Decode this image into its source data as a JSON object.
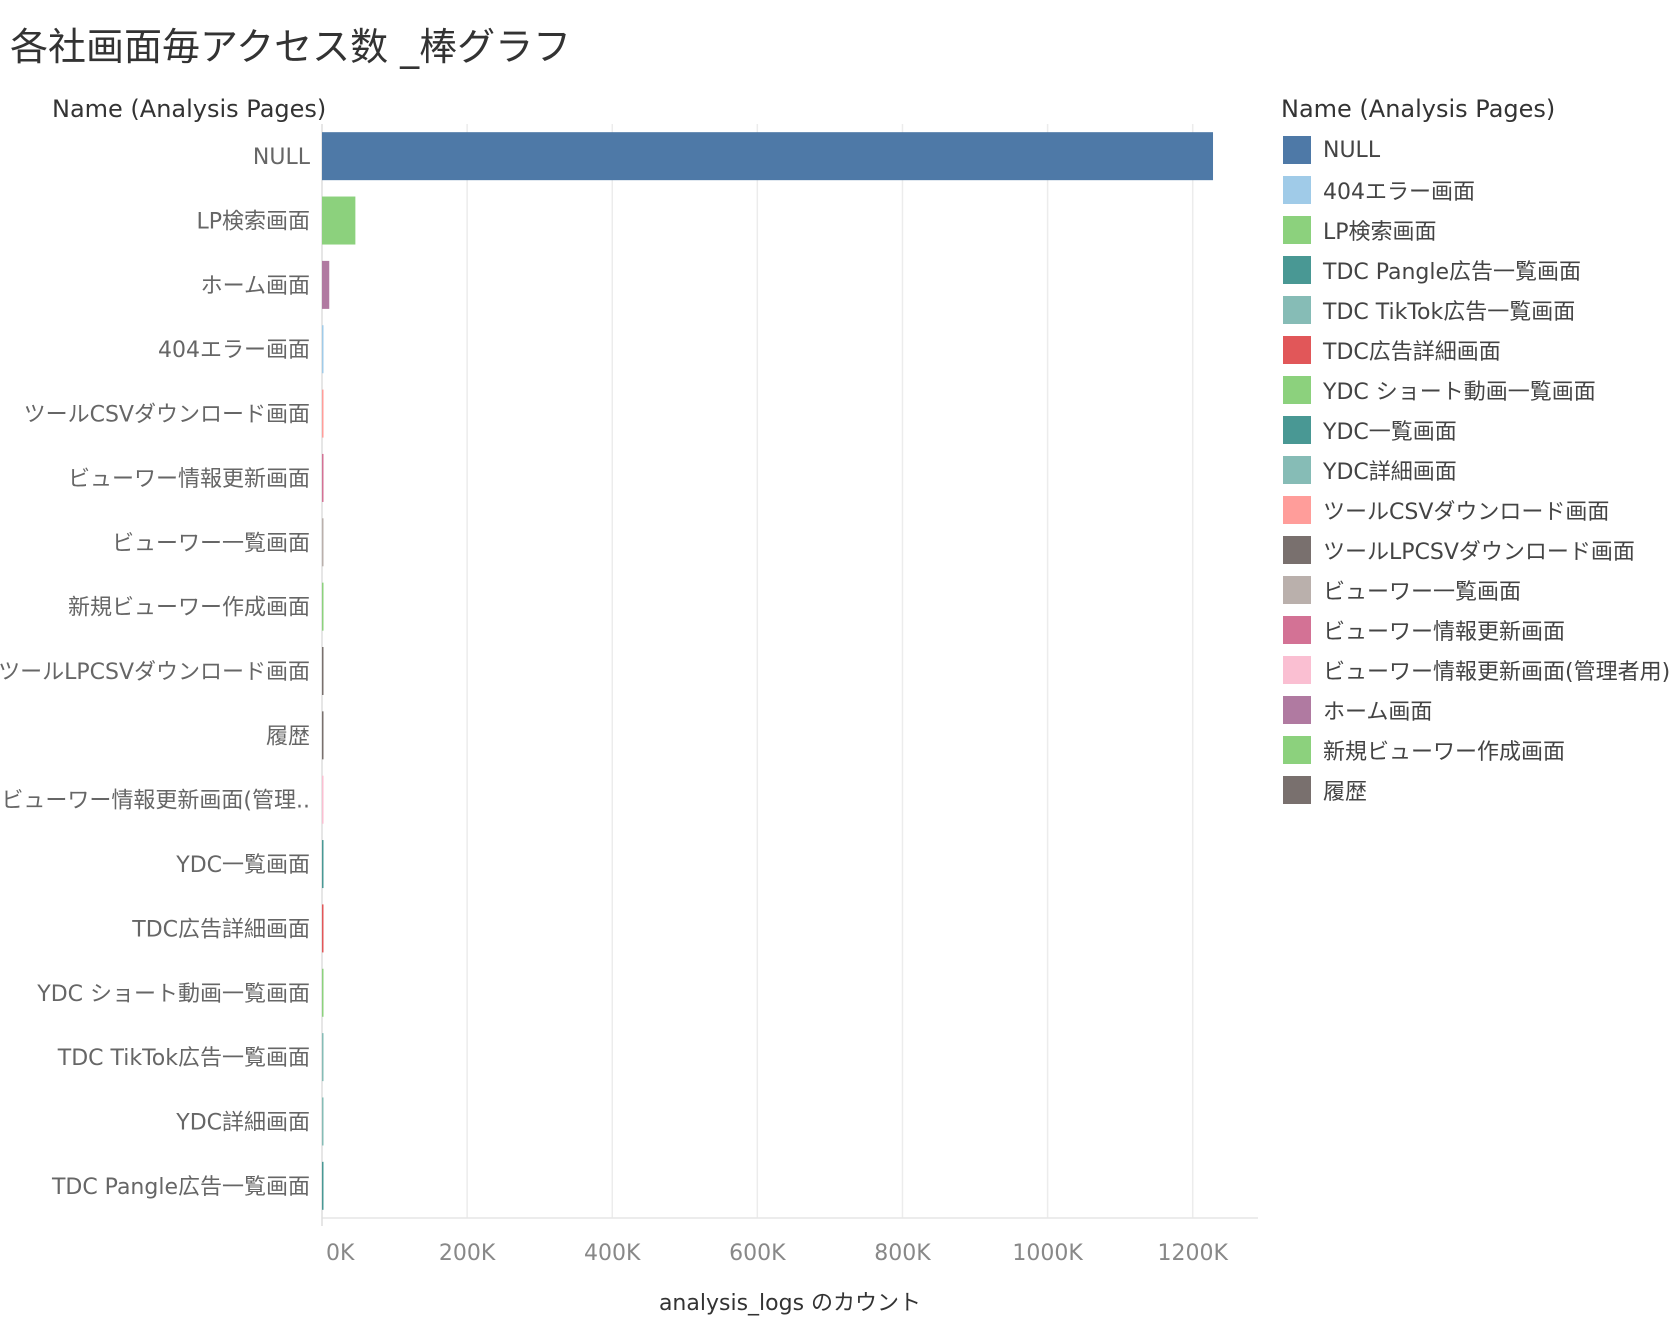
{
  "chart_data": {
    "type": "bar",
    "orientation": "horizontal",
    "title": "各社画面毎アクセス数 _棒グラフ",
    "row_header": "Name (Analysis Pages)",
    "xlabel": "analysis_logs のカウント",
    "xlim": [
      0,
      1290000
    ],
    "ticks": [
      {
        "value": 0,
        "label": "0K"
      },
      {
        "value": 200000,
        "label": "200K"
      },
      {
        "value": 400000,
        "label": "400K"
      },
      {
        "value": 600000,
        "label": "600K"
      },
      {
        "value": 800000,
        "label": "800K"
      },
      {
        "value": 1000000,
        "label": "1000K"
      },
      {
        "value": 1200000,
        "label": "1200K"
      }
    ],
    "grid": true,
    "legend_placement": "right",
    "categories": [
      "NULL",
      "LP検索画面",
      "ホーム画面",
      "404エラー画面",
      "ツールCSVダウンロード画面",
      "ビューワー情報更新画面",
      "ビューワー一覧画面",
      "新規ビューワー作成画面",
      "ツールLPCSVダウンロード画面",
      "履歴",
      "ビューワー情報更新画面(管理..",
      "YDC一覧画面",
      "TDC広告詳細画面",
      "YDC ショート動画一覧画面",
      "TDC TikTok広告一覧画面",
      "YDC詳細画面",
      "TDC Pangle広告一覧画面"
    ],
    "values": [
      1228000,
      46000,
      10000,
      1800,
      1600,
      1500,
      1400,
      1300,
      1200,
      1100,
      1000,
      900,
      800,
      700,
      600,
      500,
      400
    ],
    "colors": [
      "#4e79a7",
      "#8cd17d",
      "#b07aa1",
      "#a0cbe8",
      "#ff9d9a",
      "#d37295",
      "#bab0ac",
      "#8cd17d",
      "#79706e",
      "#79706e",
      "#fabfd2",
      "#499894",
      "#e15759",
      "#8cd17d",
      "#86bcb6",
      "#86bcb6",
      "#499894"
    ],
    "legend": {
      "title": "Name (Analysis Pages)",
      "items": [
        {
          "label": "NULL",
          "color": "#4e79a7"
        },
        {
          "label": "404エラー画面",
          "color": "#a0cbe8"
        },
        {
          "label": "LP検索画面",
          "color": "#8cd17d"
        },
        {
          "label": "TDC Pangle広告一覧画面",
          "color": "#499894"
        },
        {
          "label": "TDC TikTok広告一覧画面",
          "color": "#86bcb6"
        },
        {
          "label": "TDC広告詳細画面",
          "color": "#e15759"
        },
        {
          "label": "YDC ショート動画一覧画面",
          "color": "#8cd17d"
        },
        {
          "label": "YDC一覧画面",
          "color": "#499894"
        },
        {
          "label": "YDC詳細画面",
          "color": "#86bcb6"
        },
        {
          "label": "ツールCSVダウンロード画面",
          "color": "#ff9d9a"
        },
        {
          "label": "ツールLPCSVダウンロード画面",
          "color": "#79706e"
        },
        {
          "label": "ビューワー一覧画面",
          "color": "#bab0ac"
        },
        {
          "label": "ビューワー情報更新画面",
          "color": "#d37295"
        },
        {
          "label": "ビューワー情報更新画面(管理者用)",
          "color": "#fabfd2"
        },
        {
          "label": "ホーム画面",
          "color": "#b07aa1"
        },
        {
          "label": "新規ビューワー作成画面",
          "color": "#8cd17d"
        },
        {
          "label": "履歴",
          "color": "#79706e"
        }
      ]
    }
  }
}
